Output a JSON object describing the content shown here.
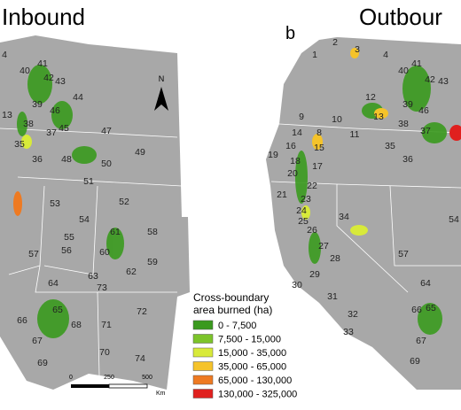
{
  "panels": [
    {
      "title": "Inbound",
      "labels": [
        "4",
        "40",
        "41",
        "42",
        "43",
        "44",
        "39",
        "46",
        "13",
        "38",
        "37",
        "45",
        "47",
        "35",
        "36",
        "48",
        "50",
        "49",
        "51",
        "52",
        "53",
        "54",
        "58",
        "61",
        "55",
        "56",
        "57",
        "60",
        "59",
        "62",
        "63",
        "73",
        "64",
        "72",
        "65",
        "66",
        "68",
        "71",
        "67",
        "70",
        "74",
        "69"
      ]
    },
    {
      "letter": "b",
      "title": "Outbour",
      "labels": [
        "1",
        "2",
        "3",
        "4",
        "40",
        "41",
        "42",
        "43",
        "12",
        "39",
        "46",
        "13",
        "9",
        "10",
        "11",
        "14",
        "8",
        "38",
        "37",
        "35",
        "36",
        "16",
        "15",
        "19",
        "18",
        "17",
        "20",
        "22",
        "21",
        "23",
        "24",
        "25",
        "34",
        "26",
        "27",
        "28",
        "29",
        "30",
        "31",
        "32",
        "33",
        "57",
        "64",
        "66",
        "65",
        "67",
        "69",
        "54"
      ]
    }
  ],
  "north": "N",
  "scale": {
    "ticks": [
      "0",
      "250",
      "500"
    ],
    "unit": "Km"
  },
  "legend": {
    "title": [
      "Cross-boundary",
      "area burned (ha)"
    ],
    "items": [
      {
        "label": "0 - 7,500",
        "color": "#3a9a1e"
      },
      {
        "label": "7,500 - 15,000",
        "color": "#7cc42a"
      },
      {
        "label": "15,000 - 35,000",
        "color": "#d8ea3a"
      },
      {
        "label": "35,000 - 65,000",
        "color": "#f5c32a"
      },
      {
        "label": "65,000 - 130,000",
        "color": "#ee7a22"
      },
      {
        "label": "130,000 - 325,000",
        "color": "#e0201e"
      }
    ]
  }
}
